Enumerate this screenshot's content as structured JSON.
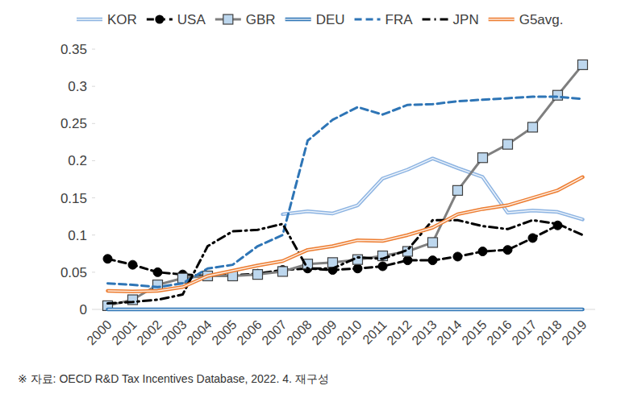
{
  "chart_data": {
    "type": "line",
    "source": "※ 자료: OECD R&D Tax Incentives Database, 2022. 4. 재구성",
    "categories": [
      "2000",
      "2001",
      "2002",
      "2003",
      "2004",
      "2005",
      "2006",
      "2007",
      "2008",
      "2009",
      "2010",
      "2011",
      "2012",
      "2013",
      "2014",
      "2015",
      "2016",
      "2017",
      "2018",
      "2019"
    ],
    "ylim": [
      0,
      0.35
    ],
    "yticks": [
      0,
      0.05,
      0.1,
      0.15,
      0.2,
      0.25,
      0.3,
      0.35
    ],
    "grid": false,
    "legend": "top",
    "series": [
      {
        "name": "KOR",
        "color": "#8db4e2",
        "line_style": "double",
        "marker": "none",
        "values": [
          null,
          null,
          null,
          null,
          null,
          null,
          null,
          0.128,
          0.132,
          0.129,
          0.14,
          0.176,
          0.188,
          0.203,
          0.19,
          0.178,
          0.13,
          0.133,
          0.131,
          0.121
        ]
      },
      {
        "name": "USA",
        "color": "#000000",
        "line_style": "dashed",
        "marker": "circle",
        "values": [
          0.068,
          0.06,
          0.05,
          0.047,
          0.045,
          0.046,
          0.048,
          0.053,
          0.055,
          0.053,
          0.055,
          0.058,
          0.066,
          0.066,
          0.071,
          0.078,
          0.08,
          0.096,
          0.113,
          null
        ]
      },
      {
        "name": "GBR",
        "color": "#7f7f7f",
        "line_style": "solid",
        "marker": "square",
        "values": [
          0.005,
          0.013,
          0.033,
          0.042,
          0.045,
          0.045,
          0.047,
          0.051,
          0.061,
          0.063,
          0.067,
          0.072,
          0.078,
          0.09,
          0.16,
          0.204,
          0.222,
          0.245,
          0.288,
          0.329
        ]
      },
      {
        "name": "DEU",
        "color": "#2e75b6",
        "line_style": "double",
        "marker": "none",
        "values": [
          0,
          0,
          0,
          0,
          0,
          0,
          0,
          0,
          0,
          0,
          0,
          0,
          0,
          0,
          0,
          0,
          0,
          0,
          0,
          0
        ]
      },
      {
        "name": "FRA",
        "color": "#2e75b6",
        "line_style": "dashed",
        "marker": "none",
        "values": [
          0.035,
          0.033,
          0.03,
          0.035,
          0.055,
          0.06,
          0.085,
          0.1,
          0.227,
          0.255,
          0.272,
          0.262,
          0.275,
          0.276,
          0.28,
          0.282,
          0.284,
          0.286,
          0.286,
          0.283
        ]
      },
      {
        "name": "JPN",
        "color": "#000000",
        "line_style": "dashdot",
        "marker": "none",
        "values": [
          0.008,
          0.01,
          0.013,
          0.02,
          0.085,
          0.105,
          0.107,
          0.115,
          0.055,
          0.055,
          0.07,
          0.068,
          0.08,
          0.12,
          0.12,
          0.112,
          0.108,
          0.12,
          0.115,
          0.1
        ]
      },
      {
        "name": "G5avg.",
        "color": "#ed7d31",
        "line_style": "double",
        "marker": "none",
        "values": [
          0.025,
          0.024,
          0.025,
          0.03,
          0.045,
          0.052,
          0.059,
          0.065,
          0.08,
          0.085,
          0.093,
          0.092,
          0.1,
          0.11,
          0.128,
          0.135,
          0.14,
          0.15,
          0.16,
          0.178
        ]
      }
    ]
  }
}
